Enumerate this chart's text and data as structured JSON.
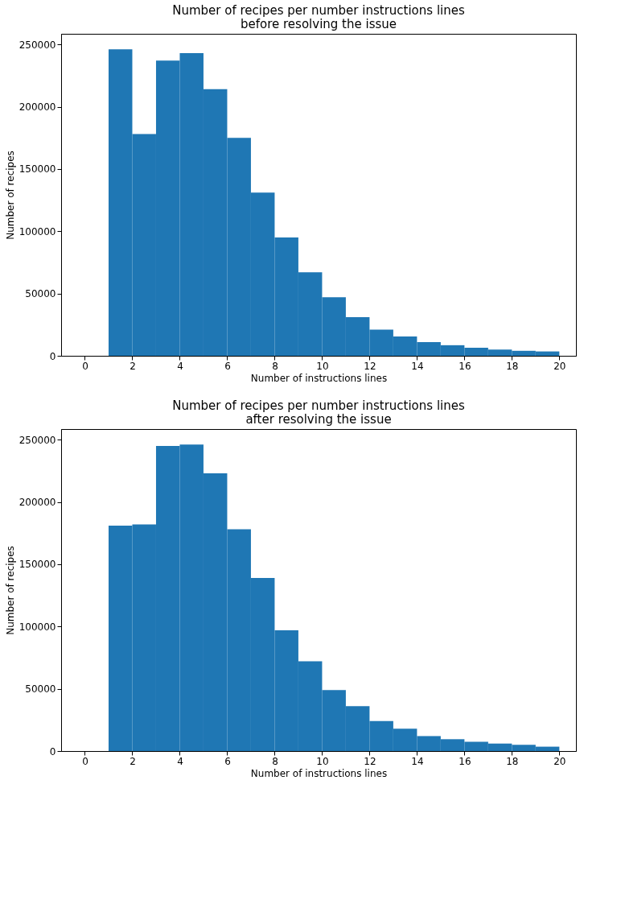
{
  "chart_data": [
    {
      "type": "histogram",
      "title": "Number of recipes per number instructions lines\nbefore resolving the issue",
      "xlabel": "Number of instructions lines",
      "ylabel": "Number of recipes",
      "color": "#1f77b4",
      "grid": false,
      "bins": [
        0,
        1,
        2,
        3,
        4,
        5,
        6,
        7,
        8,
        9,
        10,
        11,
        12,
        13,
        14,
        15,
        16,
        17,
        18,
        19,
        20
      ],
      "values": [
        0,
        246000,
        178000,
        237000,
        243000,
        214000,
        175000,
        131000,
        95000,
        67000,
        47000,
        31000,
        21000,
        15500,
        11000,
        8500,
        6500,
        5000,
        4000,
        3500
      ],
      "xlim": [
        -1,
        20.7
      ],
      "xticks": [
        0,
        2,
        4,
        6,
        8,
        10,
        12,
        14,
        16,
        18,
        20
      ],
      "ylim": [
        0,
        258500
      ],
      "yticks": [
        0,
        50000,
        100000,
        150000,
        200000,
        250000
      ]
    },
    {
      "type": "histogram",
      "title": "Number of recipes per number instructions lines\nafter resolving the issue",
      "xlabel": "Number of instructions lines",
      "ylabel": "Number of recipes",
      "color": "#1f77b4",
      "grid": false,
      "bins": [
        0,
        1,
        2,
        3,
        4,
        5,
        6,
        7,
        8,
        9,
        10,
        11,
        12,
        13,
        14,
        15,
        16,
        17,
        18,
        19,
        20
      ],
      "values": [
        0,
        181000,
        182000,
        245000,
        246000,
        223000,
        178000,
        139000,
        97000,
        72000,
        49000,
        36000,
        24000,
        18000,
        12000,
        9500,
        7500,
        6000,
        5000,
        3500
      ],
      "xlim": [
        -1,
        20.7
      ],
      "xticks": [
        0,
        2,
        4,
        6,
        8,
        10,
        12,
        14,
        16,
        18,
        20
      ],
      "ylim": [
        0,
        258500
      ],
      "yticks": [
        0,
        50000,
        100000,
        150000,
        200000,
        250000
      ]
    }
  ]
}
